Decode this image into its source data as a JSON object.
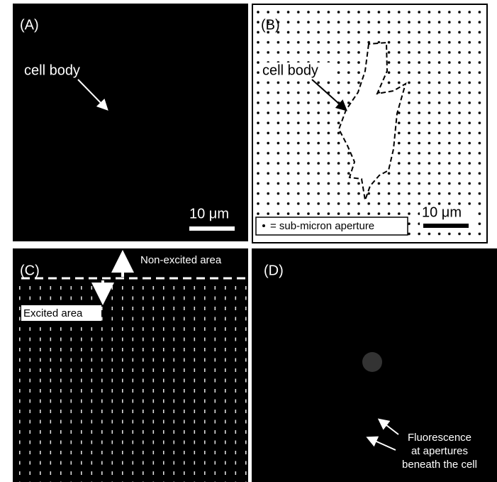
{
  "panels": [
    {
      "label": "(A)",
      "annotation": "cell body",
      "scale_bar": "10 μm"
    },
    {
      "label": "(B)",
      "annotation": "cell body",
      "scale_bar": "10 μm",
      "legend": "= sub-micron aperture"
    },
    {
      "label": "(C)",
      "annotations": [
        "Non-excited area",
        "Excited area"
      ]
    },
    {
      "label": "(D)",
      "annotation_lines": [
        "Fluorescence",
        "at apertures",
        "beneath the cell"
      ]
    }
  ]
}
